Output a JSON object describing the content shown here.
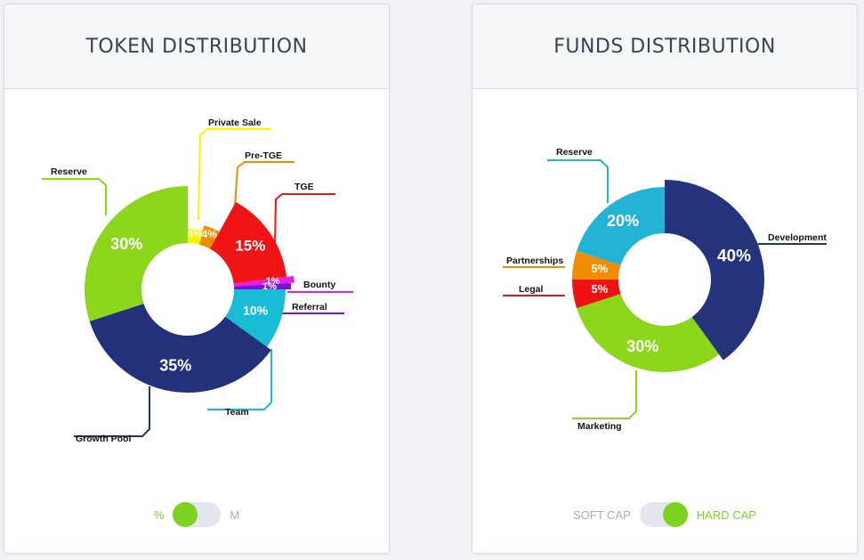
{
  "token_card": {
    "title": "TOKEN DISTRIBUTION",
    "toggle": {
      "left_label": "%",
      "right_label": "M",
      "selected": "left"
    }
  },
  "funds_card": {
    "title": "FUNDS DISTRIBUTION",
    "toggle": {
      "left_label": "SOFT CAP",
      "right_label": "HARD CAP",
      "selected": "right"
    }
  },
  "colors": {
    "accent_green": "#7ed321",
    "toggle_track": "#e4e7ed"
  },
  "chart_data": [
    {
      "type": "pie",
      "title": "TOKEN DISTRIBUTION",
      "slices": [
        {
          "label": "Private Sale",
          "value": 4,
          "display": "4%",
          "color": "#fff200"
        },
        {
          "label": "Pre-TGE",
          "value": 4,
          "display": "4%",
          "color": "#f08c00"
        },
        {
          "label": "TGE",
          "value": 15,
          "display": "15%",
          "color": "#f01414"
        },
        {
          "label": "Bounty",
          "value": 1,
          "display": "1%",
          "color": "#e61ee6"
        },
        {
          "label": "Referral",
          "value": 1,
          "display": "1%",
          "color": "#7a14dc"
        },
        {
          "label": "Team",
          "value": 10,
          "display": "10%",
          "color": "#18bcd4"
        },
        {
          "label": "Growth Pool",
          "value": 35,
          "display": "35%",
          "color": "#23307a"
        },
        {
          "label": "Reserve",
          "value": 30,
          "display": "30%",
          "color": "#8cd61c"
        }
      ]
    },
    {
      "type": "pie",
      "title": "FUNDS DISTRIBUTION",
      "slices": [
        {
          "label": "Development",
          "value": 40,
          "display": "40%",
          "color": "#25327c"
        },
        {
          "label": "Marketing",
          "value": 30,
          "display": "30%",
          "color": "#8cd61c"
        },
        {
          "label": "Legal",
          "value": 5,
          "display": "5%",
          "color": "#ee1212"
        },
        {
          "label": "Partnerships",
          "value": 5,
          "display": "5%",
          "color": "#f08c00"
        },
        {
          "label": "Reserve",
          "value": 20,
          "display": "20%",
          "color": "#22b4d2"
        }
      ]
    }
  ]
}
